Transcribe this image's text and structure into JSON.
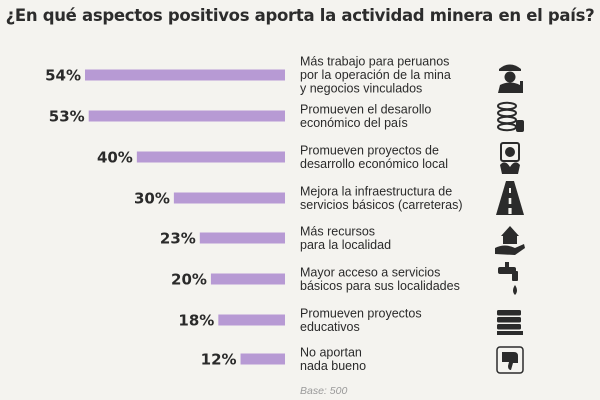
{
  "chart_data": {
    "type": "bar",
    "orientation": "horizontal",
    "title": "¿En qué aspectos positivos aporta la actividad minera en el país?",
    "categories": [
      "Más trabajo para peruanos por la operación de la mina y negocios vinculados",
      "Promueven el desarollo económico del país",
      "Promueven proyectos de desarrollo económico local",
      "Mejora la infraestructura de servicios básicos (carreteras)",
      "Más recursos para la localidad",
      "Mayor acceso a servicios básicos para sus localidades",
      "Promueven proyectos educativos",
      "No aportan nada bueno"
    ],
    "category_lines": [
      [
        "Más trabajo para peruanos",
        "por la operación de la mina",
        "y negocios vinculados"
      ],
      [
        "Promueven el desarollo",
        "económico del país"
      ],
      [
        "Promueven proyectos de",
        "desarrollo económico local"
      ],
      [
        "Mejora la infraestructura de",
        "servicios básicos (carreteras)"
      ],
      [
        "Más recursos",
        "para la localidad"
      ],
      [
        "Mayor acceso a servicios",
        "básicos para sus localidades"
      ],
      [
        "Promueven proyectos",
        "educativos"
      ],
      [
        "No aportan",
        "nada bueno"
      ]
    ],
    "values": [
      54,
      53,
      40,
      30,
      23,
      20,
      18,
      12
    ],
    "value_labels": [
      "54%",
      "53%",
      "40%",
      "30%",
      "23%",
      "20%",
      "18%",
      "12%"
    ],
    "icons": [
      "worker-icon",
      "coins-icon",
      "plant-money-icon",
      "road-icon",
      "house-hand-icon",
      "faucet-icon",
      "books-icon",
      "thumbs-down-icon"
    ],
    "bar_color": "#b79ad4",
    "icon_color": "#2b2b2b",
    "base_note": "Base: 500"
  }
}
